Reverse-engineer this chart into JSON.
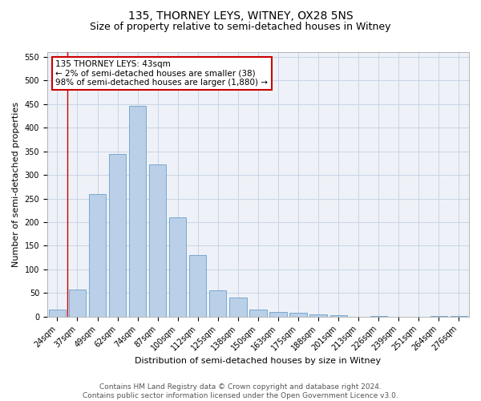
{
  "title": "135, THORNEY LEYS, WITNEY, OX28 5NS",
  "subtitle": "Size of property relative to semi-detached houses in Witney",
  "xlabel": "Distribution of semi-detached houses by size in Witney",
  "ylabel": "Number of semi-detached properties",
  "categories": [
    "24sqm",
    "37sqm",
    "49sqm",
    "62sqm",
    "74sqm",
    "87sqm",
    "100sqm",
    "112sqm",
    "125sqm",
    "138sqm",
    "150sqm",
    "163sqm",
    "175sqm",
    "188sqm",
    "201sqm",
    "213sqm",
    "226sqm",
    "239sqm",
    "251sqm",
    "264sqm",
    "276sqm"
  ],
  "values": [
    15,
    58,
    260,
    345,
    447,
    322,
    210,
    130,
    56,
    40,
    15,
    10,
    8,
    5,
    3,
    0,
    2,
    0,
    0,
    2,
    2
  ],
  "bar_color": "#bad0e8",
  "bar_edge_color": "#6a9fc8",
  "grid_color": "#c8d4e4",
  "vline_color": "#cc0000",
  "annotation_text": "135 THORNEY LEYS: 43sqm\n← 2% of semi-detached houses are smaller (38)\n98% of semi-detached houses are larger (1,880) →",
  "annotation_box_facecolor": "#ffffff",
  "annotation_box_edgecolor": "#cc0000",
  "footer_text": "Contains HM Land Registry data © Crown copyright and database right 2024.\nContains public sector information licensed under the Open Government Licence v3.0.",
  "ylim": [
    0,
    560
  ],
  "yticks": [
    0,
    50,
    100,
    150,
    200,
    250,
    300,
    350,
    400,
    450,
    500,
    550
  ],
  "background_color": "#eef2f8",
  "title_fontsize": 10,
  "subtitle_fontsize": 9,
  "axis_label_fontsize": 8,
  "tick_fontsize": 7,
  "annotation_fontsize": 7.5,
  "footer_fontsize": 6.5
}
